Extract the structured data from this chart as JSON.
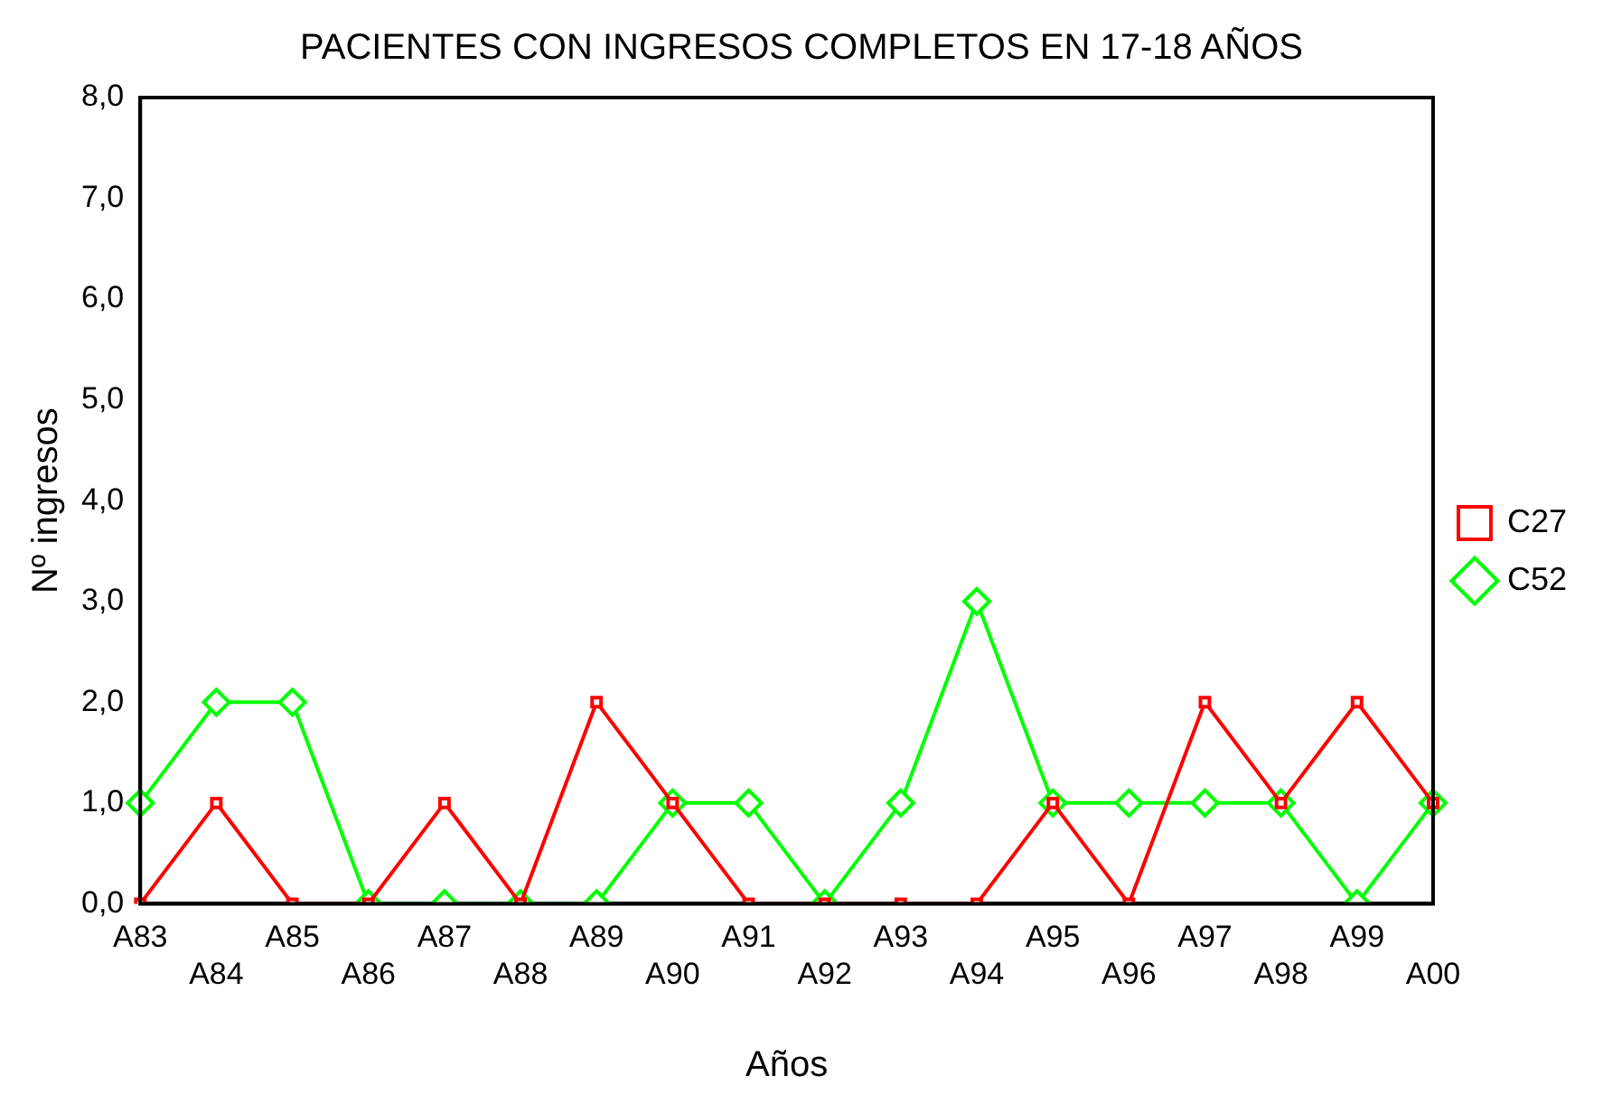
{
  "chart_data": {
    "type": "line",
    "title": "PACIENTES CON INGRESOS COMPLETOS EN 17-18 AÑOS",
    "xlabel": "Años",
    "ylabel": "Nº ingresos",
    "categories": [
      "A83",
      "A84",
      "A85",
      "A86",
      "A87",
      "A88",
      "A89",
      "A90",
      "A91",
      "A92",
      "A93",
      "A94",
      "A95",
      "A96",
      "A97",
      "A98",
      "A99",
      "A00"
    ],
    "series": [
      {
        "name": "C27",
        "color": "#ff0000",
        "marker": "square",
        "values": [
          0,
          1,
          0,
          0,
          1,
          0,
          2,
          1,
          0,
          0,
          0,
          0,
          1,
          0,
          2,
          1,
          2,
          1
        ]
      },
      {
        "name": "C52",
        "color": "#00ff00",
        "marker": "diamond",
        "values": [
          1,
          2,
          2,
          0,
          0,
          0,
          0,
          1,
          1,
          0,
          1,
          3,
          1,
          1,
          1,
          1,
          0,
          1
        ]
      }
    ],
    "ylim": [
      0,
      8
    ],
    "yticks": [
      {
        "value": 0,
        "label": "0,0"
      },
      {
        "value": 1,
        "label": "1,0"
      },
      {
        "value": 2,
        "label": "2,0"
      },
      {
        "value": 3,
        "label": "3,0"
      },
      {
        "value": 4,
        "label": "4,0"
      },
      {
        "value": 5,
        "label": "5,0"
      },
      {
        "value": 6,
        "label": "6,0"
      },
      {
        "value": 7,
        "label": "7,0"
      },
      {
        "value": 8,
        "label": "8,0"
      }
    ],
    "grid": false,
    "legend": "right",
    "line_style": "solid"
  }
}
